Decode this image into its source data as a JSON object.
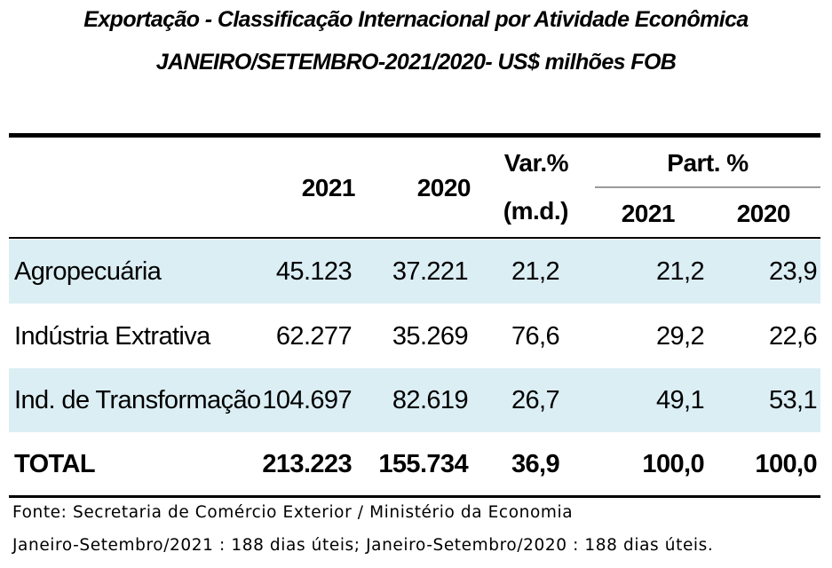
{
  "title": {
    "line1": "Exportação - Classificação Internacional por Atividade Econômica",
    "line2": "JANEIRO/SETEMBRO-2021/2020- US$ milhões FOB"
  },
  "header": {
    "col_2021": "2021",
    "col_2020": "2020",
    "var_line1": "Var.%",
    "var_line2": "(m.d.)",
    "part_group": "Part. %",
    "part_2021": "2021",
    "part_2020": "2020"
  },
  "rows": [
    {
      "label": "Agropecuária",
      "v2021": "45.123",
      "v2020": "37.221",
      "var": "21,2",
      "p2021": "21,2",
      "p2020": "23,9"
    },
    {
      "label": "Indústria Extrativa",
      "v2021": "62.277",
      "v2020": "35.269",
      "var": "76,6",
      "p2021": "29,2",
      "p2020": "22,6"
    },
    {
      "label": "Ind. de Transformação",
      "v2021": "104.697",
      "v2020": "82.619",
      "var": "26,7",
      "p2021": "49,1",
      "p2020": "53,1"
    }
  ],
  "total": {
    "label": "TOTAL",
    "v2021": "213.223",
    "v2020": "155.734",
    "var": "36,9",
    "p2021": "100,0",
    "p2020": "100,0"
  },
  "notes": {
    "source": "Fonte: Secretaria de Comércio Exterior / Ministério da Economia",
    "days": "Janeiro-Setembro/2021 : 188 dias úteis; Janeiro-Setembro/2020 : 188 dias úteis."
  },
  "colors": {
    "row_shade": "#dbeef4",
    "rule": "#000000",
    "part_rule": "#9a9a9a"
  }
}
